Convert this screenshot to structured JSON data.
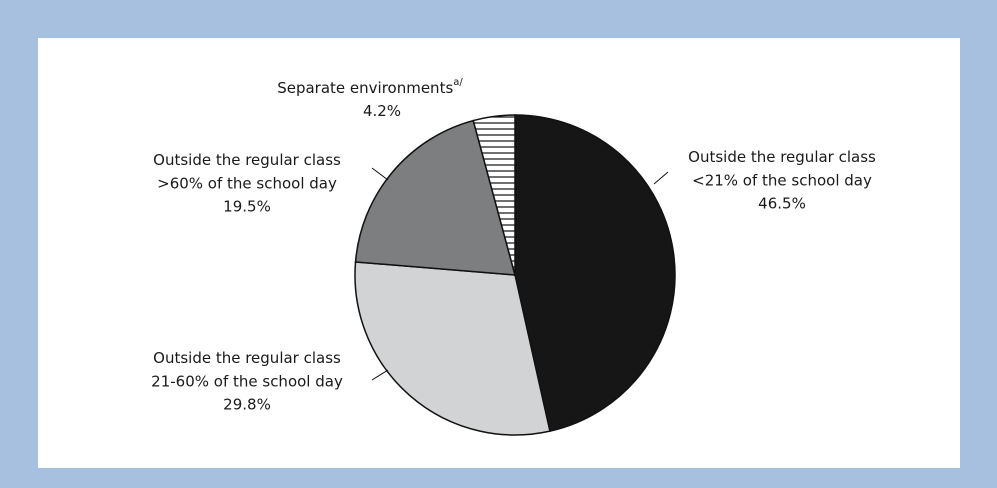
{
  "chart_data": {
    "type": "pie",
    "categories": [
      [
        "Outside the regular class",
        "<21% of the school day"
      ],
      [
        "Outside the regular class",
        "21-60% of the school day"
      ],
      [
        "Outside the regular class",
        ">60% of the school day"
      ],
      [
        "Separate environments"
      ]
    ],
    "footnote_marks": [
      null,
      null,
      null,
      "a/"
    ],
    "values": [
      46.5,
      29.8,
      19.5,
      4.2
    ],
    "value_labels": [
      "46.5%",
      "29.8%",
      "19.5%",
      "4.2%"
    ],
    "colors": [
      "#161616",
      "#d2d3d5",
      "#7d7e80",
      "#ffffff"
    ],
    "hatch": [
      false,
      false,
      false,
      true
    ],
    "start_angle": "top",
    "direction": "clockwise"
  }
}
